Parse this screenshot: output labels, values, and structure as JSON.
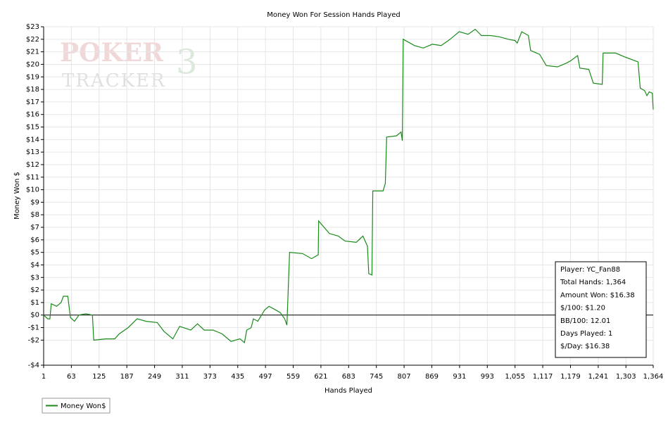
{
  "chart_data": {
    "type": "line",
    "title": "Money Won For Session Hands Played",
    "x_label": "Hands Played",
    "y_label": "Money Won $",
    "watermark": {
      "top": "POKER",
      "bottom": "TRACKER",
      "badge": "3"
    },
    "grid": true,
    "zero_line": true,
    "xlim": [
      1,
      1364
    ],
    "ylim": [
      -4,
      23
    ],
    "xticks": [
      1,
      63,
      125,
      187,
      249,
      311,
      373,
      435,
      497,
      559,
      621,
      683,
      745,
      807,
      869,
      931,
      993,
      {
        "value": 1055,
        "label": "1,055"
      },
      {
        "value": 1117,
        "label": "1,117"
      },
      {
        "value": 1179,
        "label": "1,179"
      },
      {
        "value": 1241,
        "label": "1,241"
      },
      {
        "value": 1303,
        "label": "1,303"
      },
      {
        "value": 1364,
        "label": "1,364"
      }
    ],
    "yticks": [
      {
        "value": 23,
        "label": "$23"
      },
      {
        "value": 22,
        "label": "$22"
      },
      {
        "value": 21,
        "label": "$21"
      },
      {
        "value": 20,
        "label": "$20"
      },
      {
        "value": 19,
        "label": "$19"
      },
      {
        "value": 18,
        "label": "$18"
      },
      {
        "value": 17,
        "label": "$17"
      },
      {
        "value": 16,
        "label": "$16"
      },
      {
        "value": 15,
        "label": "$15"
      },
      {
        "value": 14,
        "label": "$14"
      },
      {
        "value": 13,
        "label": "$13"
      },
      {
        "value": 12,
        "label": "$12"
      },
      {
        "value": 11,
        "label": "$11"
      },
      {
        "value": 10,
        "label": "$10"
      },
      {
        "value": 9,
        "label": "$9"
      },
      {
        "value": 8,
        "label": "$8"
      },
      {
        "value": 7,
        "label": "$7"
      },
      {
        "value": 6,
        "label": "$6"
      },
      {
        "value": 5,
        "label": "$5"
      },
      {
        "value": 4,
        "label": "$4"
      },
      {
        "value": 3,
        "label": "$3"
      },
      {
        "value": 2,
        "label": "$2"
      },
      {
        "value": 1,
        "label": "$1"
      },
      {
        "value": 0,
        "label": "$0"
      },
      {
        "value": -1,
        "label": "-$1"
      },
      {
        "value": -2,
        "label": "-$2"
      },
      {
        "value": -4,
        "label": "-$4"
      }
    ],
    "x": [
      1,
      10,
      15,
      18,
      30,
      40,
      45,
      55,
      61,
      70,
      80,
      95,
      110,
      113,
      140,
      160,
      170,
      190,
      210,
      230,
      255,
      270,
      290,
      305,
      330,
      345,
      360,
      380,
      400,
      420,
      440,
      450,
      455,
      465,
      470,
      480,
      495,
      505,
      515,
      530,
      540,
      545,
      551,
      580,
      600,
      615,
      616,
      640,
      660,
      675,
      700,
      715,
      725,
      728,
      735,
      737,
      760,
      765,
      768,
      790,
      800,
      803,
      805,
      830,
      850,
      870,
      890,
      910,
      930,
      950,
      966,
      980,
      1000,
      1020,
      1040,
      1055,
      1060,
      1070,
      1085,
      1090,
      1110,
      1125,
      1150,
      1170,
      1180,
      1195,
      1200,
      1220,
      1230,
      1250,
      1252,
      1280,
      1300,
      1330,
      1335,
      1345,
      1350,
      1355,
      1362,
      1364
    ],
    "series": [
      {
        "name": "Money Won$",
        "color": "#1a8a1a",
        "values": [
          0,
          -0.3,
          -0.3,
          0.9,
          0.7,
          1.0,
          1.5,
          1.5,
          -0.2,
          -0.5,
          0.0,
          0.1,
          0.0,
          -2.0,
          -1.9,
          -1.9,
          -1.5,
          -1.0,
          -0.3,
          -0.5,
          -0.6,
          -1.3,
          -1.9,
          -0.9,
          -1.2,
          -0.7,
          -1.2,
          -1.2,
          -1.5,
          -2.1,
          -1.9,
          -2.2,
          -1.2,
          -1.0,
          -0.3,
          -0.5,
          0.4,
          0.7,
          0.5,
          0.2,
          -0.3,
          -0.8,
          5.0,
          4.9,
          4.5,
          4.8,
          7.5,
          6.5,
          6.3,
          5.9,
          5.8,
          6.3,
          5.5,
          3.3,
          3.2,
          9.9,
          9.9,
          10.5,
          14.2,
          14.3,
          14.6,
          13.9,
          22.0,
          21.5,
          21.3,
          21.6,
          21.5,
          22.0,
          22.6,
          22.4,
          22.8,
          22.3,
          22.3,
          22.2,
          22.0,
          21.9,
          21.7,
          22.6,
          22.3,
          21.1,
          20.8,
          19.9,
          19.8,
          20.1,
          20.3,
          20.7,
          19.7,
          19.6,
          18.5,
          18.4,
          20.9,
          20.9,
          20.6,
          20.2,
          18.1,
          17.9,
          17.5,
          17.8,
          17.7,
          16.4
        ]
      }
    ],
    "stats": [
      "Player: YC_Fan88",
      "Total Hands: 1,364",
      "Amount Won: $16.38",
      "$/100: $1.20",
      "BB/100: 12.01",
      "Days Played: 1",
      "$/Day: $16.38"
    ]
  }
}
